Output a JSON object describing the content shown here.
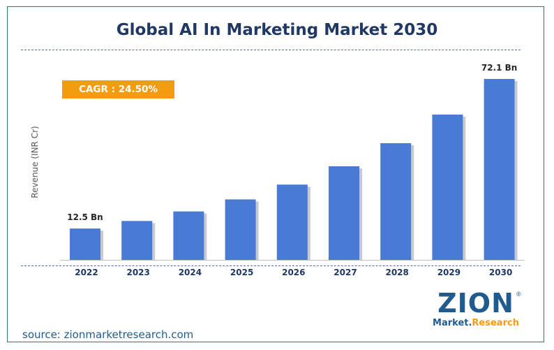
{
  "header": {
    "title": "Global AI In Marketing Market 2030"
  },
  "badge": {
    "cagr": "CAGR : 24.50%"
  },
  "footer": {
    "source": "source: zionmarketresearch.com"
  },
  "logo": {
    "main": "ZION",
    "sub_part1": "Market.",
    "sub_part2": "Research",
    "reg": "®"
  },
  "colors": {
    "bar": "#4a7bd4",
    "bar_shadow": "#c7cbd1",
    "title": "#1f3864",
    "badge": "#f39c12",
    "accent": "#1f5b8f"
  },
  "chart_data": {
    "type": "bar",
    "title": "Global AI In Marketing Market 2030",
    "xlabel": "",
    "ylabel": "Revenue (INR Cr)",
    "categories": [
      "2022",
      "2023",
      "2024",
      "2025",
      "2026",
      "2027",
      "2028",
      "2029",
      "2030"
    ],
    "series": [
      {
        "values": [
          12.5,
          15.5,
          19.3,
          24.1,
          30.0,
          37.3,
          46.5,
          57.9,
          72.1
        ]
      }
    ],
    "data_labels": [
      {
        "index": 0,
        "text": "12.5 Bn"
      },
      {
        "index": 8,
        "text": "72.1 Bn"
      }
    ],
    "ylim": [
      0,
      74
    ],
    "grid": false,
    "legend": "none"
  }
}
